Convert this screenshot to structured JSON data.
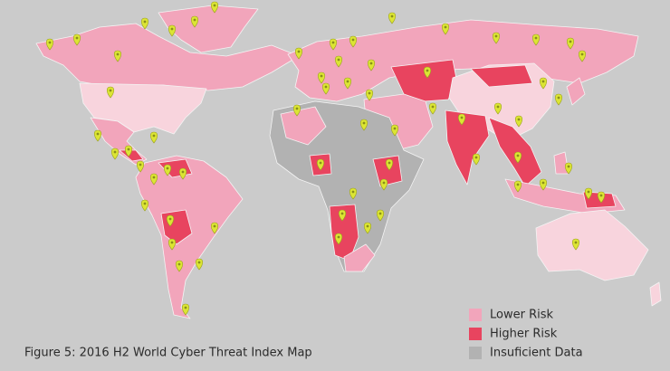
{
  "caption": "Figure 5: 2016 H2 World Cyber Threat Index Map",
  "legend": [
    {
      "label": "Lower Risk",
      "color": "#f2a5bb"
    },
    {
      "label": "Higher Risk",
      "color": "#e8445f"
    },
    {
      "label": "Insuficient Data",
      "color": "#b2b2b2"
    }
  ]
}
